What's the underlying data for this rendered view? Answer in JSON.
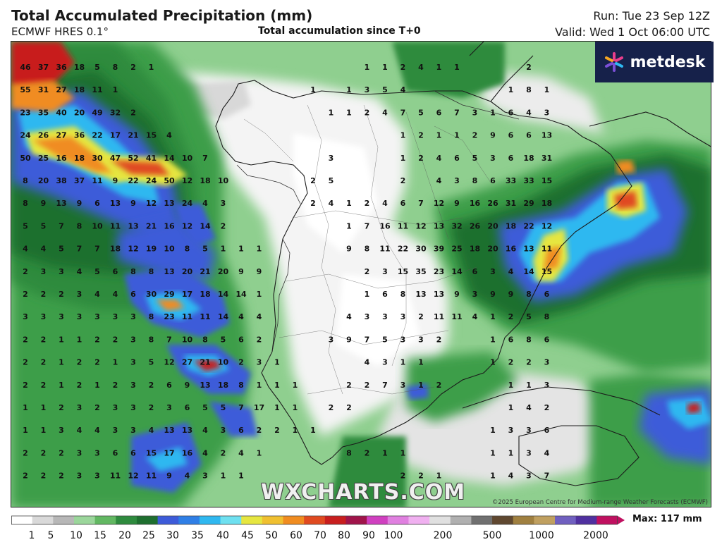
{
  "header": {
    "title": "Total Accumulated Precipitation (mm)",
    "model": "ECMWF HRES 0.1°",
    "subtitle": "Total accumulation since T+0",
    "run": "Run: Tue 23 Sep 12Z",
    "valid": "Valid: Wed 1 Oct 06:00 UTC"
  },
  "logo": {
    "text": "metdesk",
    "icon": "metdesk-asterisk-icon"
  },
  "watermark": "WXCHARTS.COM",
  "credit": "©2025 European Centre for Medium-range Weather Forecasts (ECMWF)",
  "legend": {
    "max_label": "Max: 117 mm",
    "ticks": [
      "1",
      "5",
      "10",
      "15",
      "20",
      "25",
      "30",
      "35",
      "40",
      "45",
      "50",
      "60",
      "70",
      "80",
      "90",
      "100",
      "200",
      "500",
      "1000",
      "2000"
    ],
    "colors": [
      "#ffffff",
      "#d9d9d9",
      "#b7b7b7",
      "#9bd69b",
      "#62b862",
      "#2e8b3e",
      "#1e6f2f",
      "#3d5bd9",
      "#2f7fe6",
      "#2fb8f0",
      "#6ee0f0",
      "#e6e640",
      "#f0c030",
      "#f08c20",
      "#e04a20",
      "#c81e1e",
      "#a0144a",
      "#d040c0",
      "#e080e0",
      "#f0b0f0",
      "#e0e0e0",
      "#b0b0b0",
      "#707070",
      "#604830",
      "#a08040",
      "#c0a060",
      "#7060c0",
      "#5030a0",
      "#c01060"
    ]
  },
  "map_labels": [
    "46 37 36 18 5 8 2 1 . . . . . . . . . . . 1 1 2 4 1 1 . . . 2 .",
    "55 31 27 18 11 1 . . . . . . . . . . 1 . 1 3 5 4 . . . . . 1 8 1",
    "23 35 40 20 49 32 2 . . . . . . . . . . 1 1 2 4 7 5 6 7 3 1 6 4 3",
    "24 26 27 36 22 17 21 15 4 . . . . . . . . . . . . 1 2 1 1 2 9 6 6 13",
    "50 25 16 18 30 47 52 41 14 10 7 . . . . . . 3 . . . 1 2 4 6 5 3 6 18 31",
    "8 20 38 37 11 9 22 24 50 12 18 10 . . . . 2 5 . . . 2 . 4 3 8 6 33 33 15",
    "8 9 13 9 6 13 9 12 13 24 4 3 . . . . 2 4 1 2 4 6 7 12 9 16 26 31 29 18",
    "5 5 7 8 10 11 13 21 16 12 14 2 . . . . . . 1 7 16 11 12 13 32 26 20 18 22 12",
    "4 4 5 7 7 18 12 19 10 8 5 1 1 1 . . . . 9 8 11 22 30 39 25 18 20 16 13 11",
    "2 3 3 4 5 6 8 8 13 20 21 20 9 9 . . . . . 2 3 15 35 23 14 6 3 4 14 15",
    "2 2 2 3 4 4 6 30 29 17 18 14 14 1 . . . . . 1 6 8 13 13 9 3 9 9 8 6",
    "3 3 3 3 3 3 3 8 23 11 11 14 4 4 . . . . 4 3 3 3 2 11 11 4 1 2 5 8",
    "2 2 1 1 2 2 3 8 7 10 8 5 6 2 . . . 3 9 7 5 3 3 2 . . 1 6 8 6",
    "2 2 1 2 2 1 3 5 12 27 21 10 2 3 1 . . . . 4 3 1 1 . . . 1 2 2 3",
    "2 2 1 2 1 2 3 2 6 9 13 18 8 1 1 1 . . 2 2 7 3 1 2 . . . 1 1 3",
    "1 1 2 3 2 3 3 2 3 6 5 5 7 17 1 1 . 2 2 . . . . . . . . 1 4 2",
    "1 1 3 4 4 3 3 4 13 13 4 3 6 2 2 1 1 . . . . . . . . . 1 3 3 6",
    "2 2 2 3 3 6 6 15 17 16 4 2 4 1 . . . . 8 2 1 1 . . . . 1 1 3 4",
    "2 2 2 3 3 11 12 11 9 4 3 1 1 . . . . . . . . 2 2 1 . . 1 4 3 7"
  ]
}
